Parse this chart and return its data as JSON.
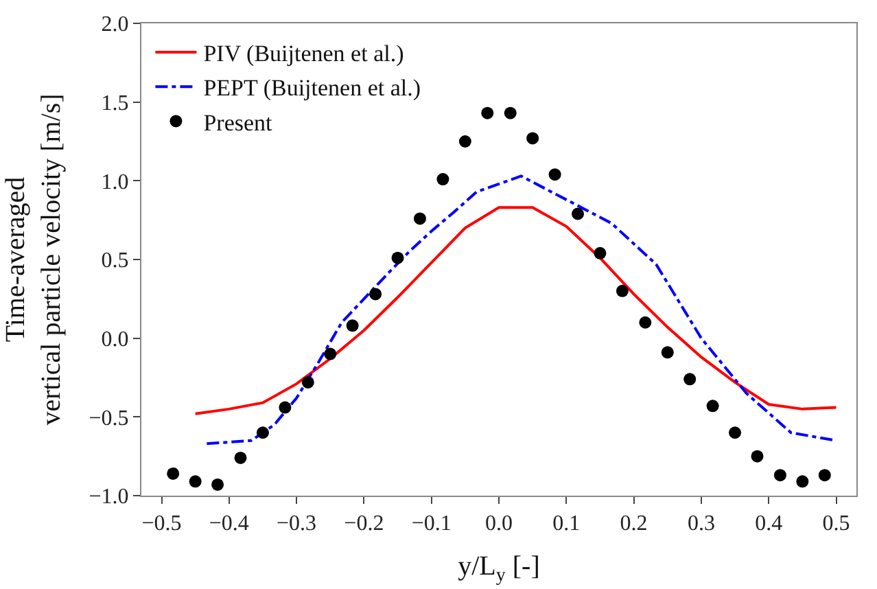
{
  "chart_data": {
    "type": "line",
    "xlabel": "y/L$_{y}$ [-]",
    "ylabel": "Time-averaged\nvertical particle velocity [m/s]",
    "xlim": [
      -0.53,
      0.53
    ],
    "xticks": [
      {
        "value": -0.5,
        "label": "−0.5"
      },
      {
        "value": -0.4,
        "label": "−0.4"
      },
      {
        "value": -0.3,
        "label": "−0.3"
      },
      {
        "value": -0.2,
        "label": "−0.2"
      },
      {
        "value": -0.1,
        "label": "−0.1"
      },
      {
        "value": 0,
        "label": "0.0"
      },
      0.1,
      0.2,
      0.3,
      0.4,
      0.5
    ],
    "ylim": [
      -1.0,
      2.0
    ],
    "yticks": [
      {
        "value": -1,
        "label": "−1.0"
      },
      {
        "value": -0.5,
        "label": "−0.5"
      },
      {
        "value": 0,
        "label": "0.0"
      },
      0.5,
      {
        "value": 1,
        "label": "1.0"
      },
      1.5,
      {
        "value": 2,
        "label": "2.0"
      }
    ],
    "legend": "top left",
    "series": [
      {
        "name": "PIV (Buijtenen et al.)",
        "color": "#ff0000",
        "line_style": "solid",
        "marker": "none",
        "x": [
          -0.45,
          -0.4,
          -0.35,
          -0.3,
          -0.25,
          -0.2,
          -0.15,
          -0.1,
          -0.05,
          0,
          0.05,
          0.1,
          0.15,
          0.2,
          0.25,
          0.3,
          0.35,
          0.4,
          0.45,
          0.5
        ],
        "values": [
          -0.48,
          -0.45,
          -0.41,
          -0.29,
          -0.13,
          0.05,
          0.26,
          0.48,
          0.7,
          0.83,
          0.83,
          0.71,
          0.51,
          0.28,
          0.07,
          -0.12,
          -0.28,
          -0.42,
          -0.45,
          -0.44
        ]
      },
      {
        "name": "PEPT (Buijtenen et al.)",
        "color": "#0000ff",
        "line_style": "dashdot",
        "marker": "none",
        "x": [
          -0.433,
          -0.367,
          -0.333,
          -0.3,
          -0.267,
          -0.233,
          -0.2,
          -0.167,
          -0.133,
          -0.1,
          -0.067,
          -0.033,
          0.033,
          0.1,
          0.167,
          0.233,
          0.3,
          0.367,
          0.433,
          0.5
        ],
        "values": [
          -0.67,
          -0.65,
          -0.55,
          -0.38,
          -0.15,
          0.1,
          0.25,
          0.4,
          0.55,
          0.68,
          0.8,
          0.93,
          1.03,
          0.88,
          0.73,
          0.47,
          0.0,
          -0.35,
          -0.6,
          -0.65
        ]
      },
      {
        "name": "Present",
        "type": "scatter",
        "color": "#000000",
        "marker": "circle",
        "x": [
          -0.483,
          -0.45,
          -0.417,
          -0.383,
          -0.35,
          -0.317,
          -0.283,
          -0.25,
          -0.217,
          -0.183,
          -0.15,
          -0.117,
          -0.083,
          -0.05,
          -0.017,
          0.017,
          0.05,
          0.083,
          0.117,
          0.15,
          0.183,
          0.217,
          0.25,
          0.283,
          0.317,
          0.35,
          0.383,
          0.417,
          0.45,
          0.483
        ],
        "values": [
          -0.86,
          -0.91,
          -0.93,
          -0.76,
          -0.6,
          -0.44,
          -0.28,
          -0.1,
          0.08,
          0.28,
          0.51,
          0.76,
          1.01,
          1.25,
          1.43,
          1.43,
          1.27,
          1.04,
          0.79,
          0.54,
          0.3,
          0.1,
          -0.09,
          -0.26,
          -0.43,
          -0.6,
          -0.75,
          -0.87,
          -0.91,
          -0.87
        ]
      }
    ]
  }
}
